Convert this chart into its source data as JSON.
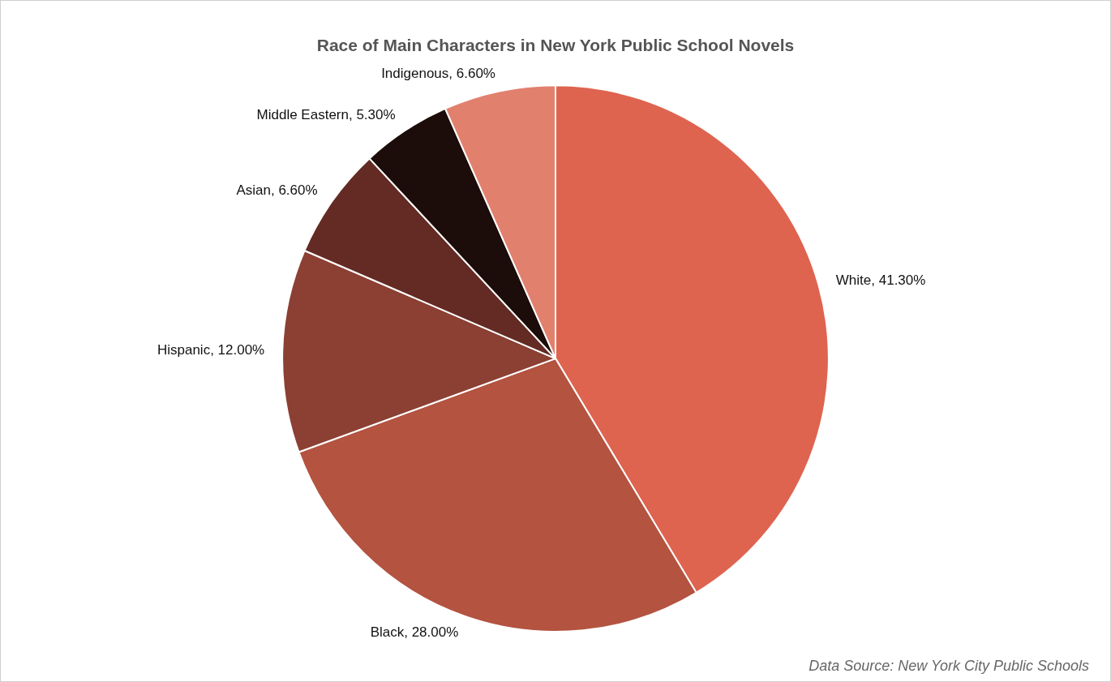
{
  "chart_data": {
    "type": "pie",
    "title": "Race of Main Characters in New York Public School Novels",
    "categories": [
      "White",
      "Black",
      "Hispanic",
      "Asian",
      "Middle Eastern",
      "Indigenous"
    ],
    "values": [
      41.3,
      28.0,
      12.0,
      6.6,
      5.3,
      6.6
    ],
    "value_labels": [
      "41.30%",
      "28.00%",
      "12.00%",
      "6.60%",
      "5.30%",
      "6.60%"
    ],
    "colors": [
      "#de6450",
      "#b35340",
      "#8b4033",
      "#632b23",
      "#1c0d0a",
      "#e2806e"
    ],
    "annotations": [
      "Data Source: New York City Public Schools"
    ],
    "legend": false
  }
}
